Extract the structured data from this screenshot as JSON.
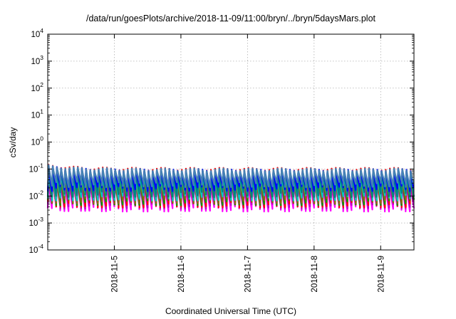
{
  "chart_data": {
    "type": "line",
    "title": "/data/run/goesPlots/archive/2018-11-09/11:00/bryn/../bryn/5daysMars.plot",
    "xlabel": "Coordinated Universal Time (UTC)",
    "ylabel": "cSv/day",
    "xlim": [
      "2018-11-04T00:00",
      "2018-11-09T12:00"
    ],
    "ylim": [
      0.0001,
      10000
    ],
    "yscale": "log",
    "grid": true,
    "legend": "none",
    "x_ticks": [
      "2018-11-5",
      "2018-11-6",
      "2018-11-7",
      "2018-11-8",
      "2018-11-9"
    ],
    "y_ticks": [
      {
        "base": "10",
        "exp": "-4",
        "value": 0.0001
      },
      {
        "base": "10",
        "exp": "-3",
        "value": 0.001
      },
      {
        "base": "10",
        "exp": "-2",
        "value": 0.01
      },
      {
        "base": "10",
        "exp": "-1",
        "value": 0.1
      },
      {
        "base": "10",
        "exp": "0",
        "value": 1
      },
      {
        "base": "10",
        "exp": "1",
        "value": 10
      },
      {
        "base": "10",
        "exp": "2",
        "value": 100
      },
      {
        "base": "10",
        "exp": "3",
        "value": 1000
      },
      {
        "base": "10",
        "exp": "4",
        "value": 10000
      }
    ],
    "cycle_hours": 1.5,
    "series": [
      {
        "color": "#ff00ff",
        "peak": 0.03,
        "trough": 0.0035
      },
      {
        "color": "#c000c0",
        "peak": 0.032,
        "trough": 0.0045
      },
      {
        "color": "#ff0000",
        "peak": 0.1,
        "trough": 0.005
      },
      {
        "color": "#00a000",
        "peak": 0.05,
        "trough": 0.006
      },
      {
        "color": "#8b6914",
        "peak": 0.045,
        "trough": 0.007
      },
      {
        "color": "#00c8c8",
        "peak": 0.06,
        "trough": 0.009
      },
      {
        "color": "#008080",
        "peak": 0.075,
        "trough": 0.012
      },
      {
        "color": "#0000ff",
        "peak": 0.09,
        "trough": 0.02
      },
      {
        "color": "#4682b4",
        "peak": 0.095,
        "trough": 0.028
      }
    ]
  }
}
